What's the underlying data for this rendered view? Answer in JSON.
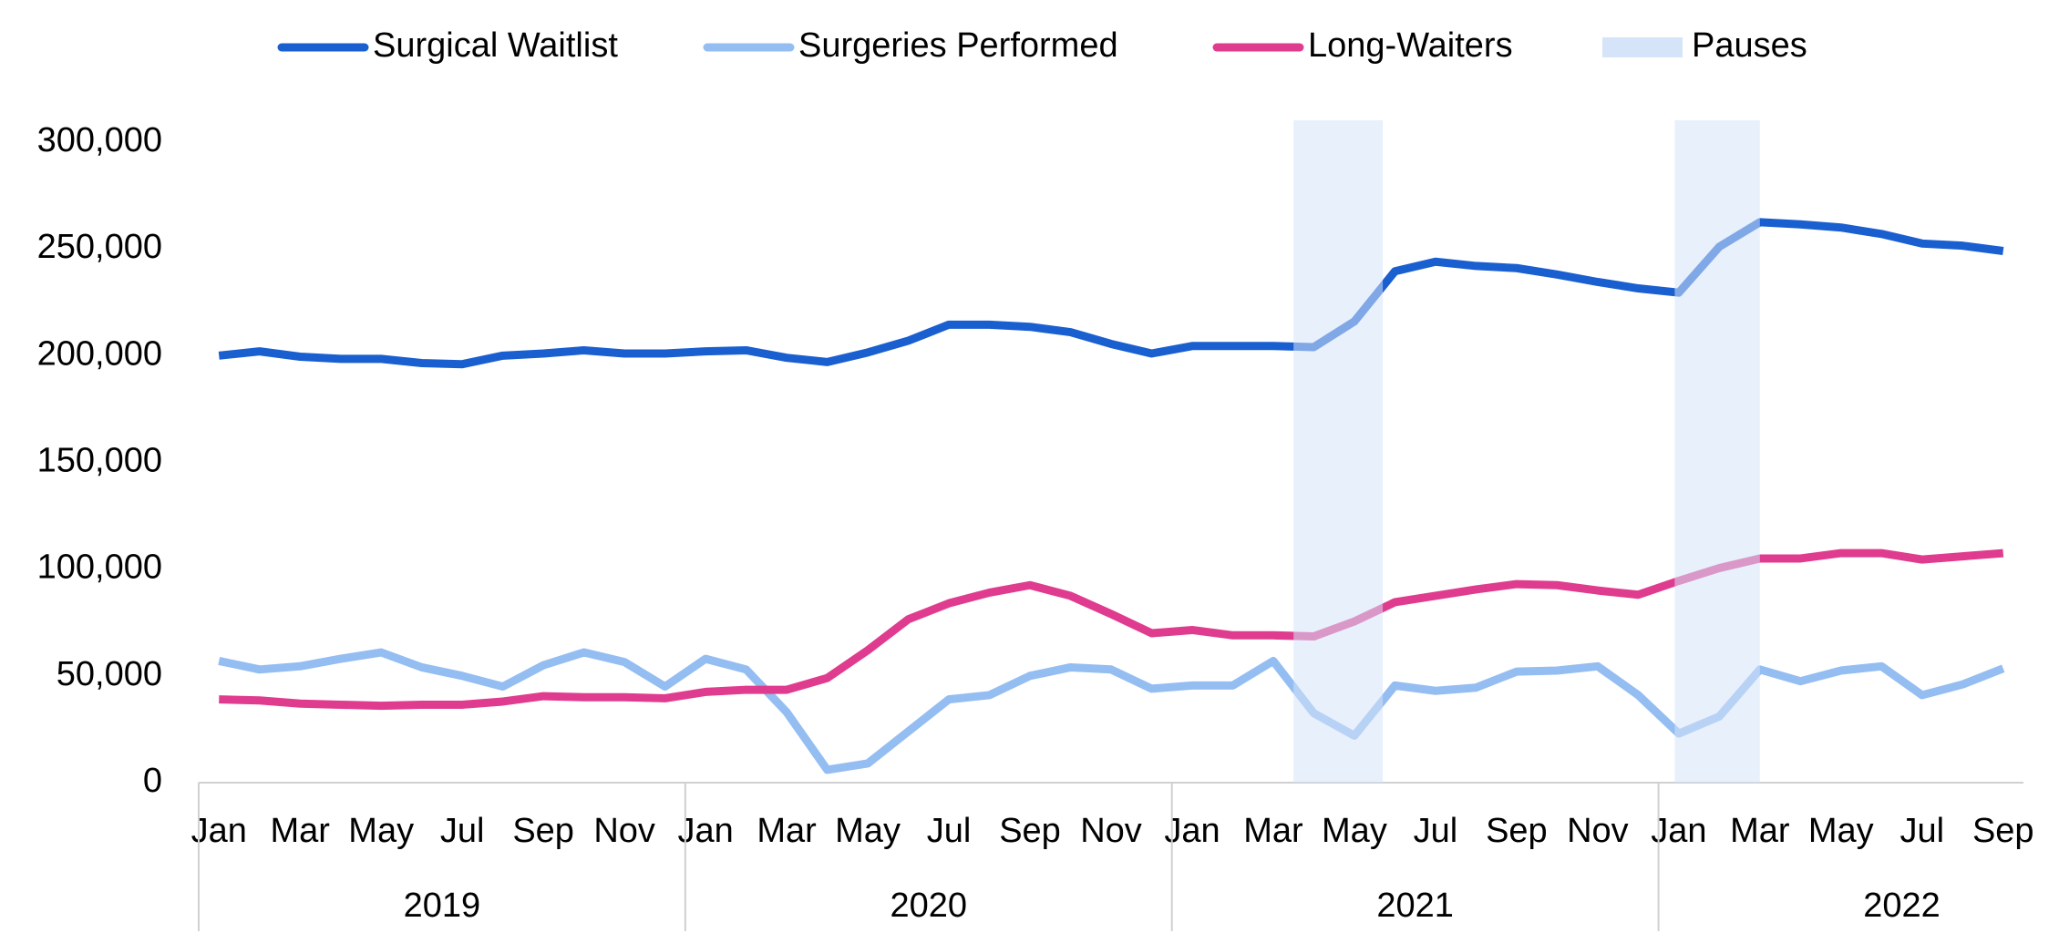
{
  "chart_data": {
    "type": "line",
    "categories": [
      "Jan",
      null,
      "Mar",
      null,
      "May",
      null,
      "Jul",
      null,
      "Sep",
      null,
      "Nov",
      null,
      "Jan",
      null,
      "Mar",
      null,
      "May",
      null,
      "Jul",
      null,
      "Sep",
      null,
      "Nov",
      null,
      "Jan",
      null,
      "Mar",
      null,
      "May",
      null,
      "Jul",
      null,
      "Sep",
      null,
      "Nov",
      null,
      "Jan",
      null,
      "Mar",
      null,
      "May",
      null,
      "Jul",
      null,
      "Sep"
    ],
    "years": [
      "2019",
      "2020",
      "2021",
      "2022"
    ],
    "series": [
      {
        "name": "Surgical Waitlist",
        "color": "#1a5fd0",
        "values": [
          200000,
          202000,
          199500,
          198500,
          198500,
          196500,
          196000,
          200000,
          201000,
          202500,
          201000,
          201000,
          202000,
          202500,
          199000,
          197000,
          201500,
          207000,
          214500,
          214500,
          213500,
          211000,
          205500,
          201000,
          204500,
          204500,
          204500,
          204000,
          216000,
          239500,
          244000,
          242000,
          241000,
          238000,
          234500,
          231500,
          229500,
          251000,
          262500,
          261500,
          260000,
          257000,
          252500,
          251500,
          249000
        ]
      },
      {
        "name": "Surgeries Performed",
        "color": "#94bdf2",
        "values": [
          57000,
          53000,
          54500,
          58000,
          61000,
          54000,
          50000,
          45000,
          55000,
          61000,
          56500,
          45000,
          58000,
          53000,
          33000,
          6000,
          9000,
          24000,
          39000,
          41000,
          50000,
          54000,
          53000,
          44000,
          45500,
          45500,
          57000,
          32500,
          22000,
          45500,
          43000,
          44500,
          52000,
          52500,
          54500,
          41000,
          23000,
          31000,
          53000,
          47500,
          52500,
          54500,
          41000,
          46000,
          53500
        ]
      },
      {
        "name": "Long-Waiters",
        "color": "#e03c8f",
        "values": [
          39000,
          38500,
          37000,
          36500,
          36000,
          36500,
          36500,
          38000,
          40500,
          40000,
          40000,
          39500,
          42500,
          43500,
          43500,
          49000,
          62000,
          76500,
          84000,
          89000,
          92500,
          87500,
          79000,
          70000,
          71500,
          69000,
          69000,
          68500,
          75500,
          84500,
          87500,
          90500,
          93000,
          92500,
          90000,
          88000,
          94500,
          100500,
          105000,
          105000,
          107500,
          107500,
          104500,
          106000,
          107500
        ]
      }
    ],
    "pauses": {
      "name": "Pauses",
      "color": "#d6e4fa",
      "ranges": [
        [
          26.5,
          28.7
        ],
        [
          35.9,
          38
        ]
      ]
    },
    "ylim": [
      0,
      300000
    ],
    "yticks": [
      0,
      {
        "value": 50000,
        "label": "50,000"
      },
      {
        "value": 100000,
        "label": "100,000"
      },
      {
        "value": 150000,
        "label": "150,000"
      },
      {
        "value": 200000,
        "label": "200,000"
      },
      {
        "value": 250000,
        "label": "250,000"
      },
      {
        "value": 300000,
        "label": "300,000"
      }
    ],
    "grid": false
  }
}
